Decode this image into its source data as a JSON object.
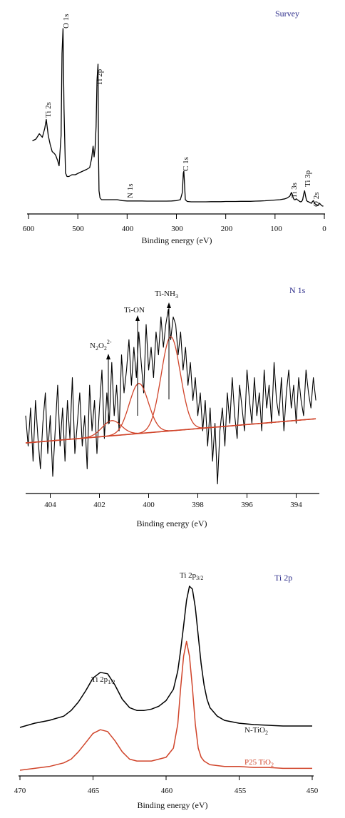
{
  "chart_data": [
    {
      "type": "line",
      "title": "Survey",
      "xlabel": "Binding energy (eV)",
      "ylabel": "",
      "xlim": [
        600,
        0
      ],
      "x_ticks": [
        "600",
        "500",
        "400",
        "300",
        "200",
        "100",
        "0"
      ],
      "series": [
        {
          "color": "#000000",
          "x": [
            592,
            585,
            578,
            572,
            567,
            564,
            560,
            556,
            552,
            548,
            545,
            541,
            538,
            534,
            532,
            530,
            528,
            525,
            522,
            518,
            512,
            505,
            498,
            490,
            482,
            476,
            472,
            469,
            467,
            465,
            463,
            461,
            459,
            458,
            457,
            455,
            452,
            448,
            440,
            430,
            420,
            410,
            400,
            390,
            380,
            370,
            360,
            350,
            340,
            330,
            320,
            310,
            300,
            292,
            288,
            286,
            285,
            284,
            282,
            278,
            270,
            260,
            250,
            240,
            230,
            220,
            210,
            200,
            190,
            180,
            170,
            160,
            150,
            140,
            130,
            120,
            110,
            100,
            90,
            80,
            75,
            70,
            67,
            65,
            63,
            61,
            59,
            57,
            55,
            52,
            50,
            48,
            46,
            44,
            42,
            40,
            38,
            36,
            34,
            32,
            30,
            28,
            26,
            24,
            22,
            20,
            18,
            16,
            14,
            12,
            10,
            8,
            6,
            4,
            2
          ],
          "y": [
            0.37,
            0.38,
            0.41,
            0.39,
            0.44,
            0.49,
            0.4,
            0.35,
            0.31,
            0.3,
            0.29,
            0.26,
            0.23,
            0.4,
            0.86,
            1.0,
            0.55,
            0.19,
            0.17,
            0.17,
            0.18,
            0.18,
            0.19,
            0.2,
            0.21,
            0.22,
            0.27,
            0.34,
            0.28,
            0.33,
            0.45,
            0.71,
            0.8,
            0.3,
            0.09,
            0.05,
            0.04,
            0.04,
            0.04,
            0.04,
            0.04,
            0.035,
            0.033,
            0.033,
            0.033,
            0.033,
            0.032,
            0.032,
            0.032,
            0.032,
            0.032,
            0.033,
            0.035,
            0.04,
            0.08,
            0.19,
            0.2,
            0.15,
            0.04,
            0.03,
            0.028,
            0.028,
            0.028,
            0.028,
            0.029,
            0.029,
            0.029,
            0.03,
            0.03,
            0.03,
            0.031,
            0.031,
            0.031,
            0.032,
            0.033,
            0.034,
            0.036,
            0.038,
            0.04,
            0.045,
            0.05,
            0.06,
            0.08,
            0.07,
            0.05,
            0.04,
            0.04,
            0.045,
            0.04,
            0.035,
            0.03,
            0.028,
            0.03,
            0.04,
            0.07,
            0.09,
            0.06,
            0.035,
            0.03,
            0.028,
            0.025,
            0.022,
            0.02,
            0.03,
            0.035,
            0.02,
            0.015,
            0.012,
            0.01,
            0.008,
            0.02,
            0.015,
            0.008,
            0.005,
            0.004
          ]
        }
      ],
      "annotations": [
        "O 1s",
        "Ti 2s",
        "Ti 2p",
        "N 1s",
        "C 1s",
        "Ti 3s",
        "Ti 3p",
        "O 2s"
      ]
    },
    {
      "type": "line",
      "title": "N 1s",
      "xlabel": "Binding energy (eV)",
      "ylabel": "",
      "xlim": [
        405,
        393
      ],
      "x_ticks": [
        "404",
        "402",
        "400",
        "398",
        "396",
        "394"
      ],
      "series": [
        {
          "color": "#000000",
          "x": [
            405.0,
            404.9,
            404.8,
            404.7,
            404.6,
            404.5,
            404.4,
            404.3,
            404.2,
            404.1,
            404.0,
            403.9,
            403.8,
            403.7,
            403.6,
            403.5,
            403.4,
            403.3,
            403.2,
            403.1,
            403.0,
            402.9,
            402.8,
            402.7,
            402.6,
            402.5,
            402.4,
            402.3,
            402.2,
            402.1,
            402.0,
            401.9,
            401.8,
            401.7,
            401.6,
            401.5,
            401.4,
            401.3,
            401.2,
            401.1,
            401.0,
            400.9,
            400.8,
            400.7,
            400.6,
            400.5,
            400.4,
            400.3,
            400.2,
            400.1,
            400.0,
            399.9,
            399.8,
            399.7,
            399.6,
            399.5,
            399.4,
            399.3,
            399.2,
            399.1,
            399.0,
            398.9,
            398.8,
            398.7,
            398.6,
            398.5,
            398.4,
            398.3,
            398.2,
            398.1,
            398.0,
            397.9,
            397.8,
            397.7,
            397.6,
            397.5,
            397.4,
            397.3,
            397.2,
            397.1,
            397.0,
            396.9,
            396.8,
            396.7,
            396.6,
            396.5,
            396.4,
            396.3,
            396.2,
            396.1,
            396.0,
            395.9,
            395.8,
            395.7,
            395.6,
            395.5,
            395.4,
            395.3,
            395.2,
            395.1,
            395.0,
            394.9,
            394.8,
            394.7,
            394.6,
            394.5,
            394.4,
            394.3,
            394.2,
            394.1,
            394.0,
            393.9,
            393.8,
            393.7,
            393.6,
            393.5,
            393.4,
            393.3,
            393.2
          ],
          "y": [
            0.4,
            0.2,
            0.45,
            0.1,
            0.5,
            0.25,
            0.05,
            0.35,
            0.55,
            0.15,
            0.4,
            0.0,
            0.3,
            0.6,
            0.2,
            0.45,
            0.1,
            0.5,
            0.25,
            0.65,
            0.15,
            0.35,
            0.55,
            0.2,
            0.4,
            0.05,
            0.6,
            0.3,
            0.5,
            0.15,
            0.45,
            0.7,
            0.25,
            0.55,
            0.35,
            0.75,
            0.4,
            0.6,
            0.3,
            0.8,
            0.55,
            0.7,
            0.9,
            0.6,
            0.85,
            0.65,
            0.95,
            0.75,
            0.55,
            1.0,
            0.7,
            0.85,
            0.65,
            0.95,
            0.8,
            1.05,
            0.85,
            1.0,
            1.1,
            0.9,
            1.05,
            1.0,
            0.8,
            0.95,
            0.7,
            0.85,
            0.6,
            0.75,
            0.5,
            0.65,
            0.4,
            0.55,
            0.3,
            0.5,
            0.2,
            0.45,
            0.1,
            0.35,
            -0.05,
            0.3,
            0.45,
            0.2,
            0.55,
            0.35,
            0.65,
            0.4,
            0.25,
            0.6,
            0.45,
            0.3,
            0.7,
            0.5,
            0.35,
            0.65,
            0.4,
            0.55,
            0.3,
            0.7,
            0.45,
            0.6,
            0.35,
            0.75,
            0.5,
            0.4,
            0.65,
            0.3,
            0.55,
            0.7,
            0.45,
            0.6,
            0.35,
            0.65,
            0.5,
            0.4,
            0.7,
            0.55,
            0.45,
            0.65,
            0.5
          ]
        },
        {
          "color": "#d0442a",
          "peak_center": 401.5,
          "peak_height": 0.1,
          "peak_width": 0.55
        },
        {
          "color": "#d0442a",
          "peak_center": 400.4,
          "peak_height": 0.33,
          "peak_width": 0.55
        },
        {
          "color": "#d0442a",
          "peak_center": 399.1,
          "peak_height": 0.62,
          "peak_width": 0.55
        }
      ],
      "annotations": [
        "N",
        "2",
        "O",
        "2",
        "2-",
        "Ti-ON",
        "Ti-NH",
        "3"
      ]
    },
    {
      "type": "line",
      "title": "Ti 2p",
      "xlabel": "Binding energy (eV)",
      "ylabel": "",
      "xlim": [
        470,
        450
      ],
      "x_ticks": [
        "470",
        "465",
        "460",
        "455",
        "450"
      ],
      "series": [
        {
          "name_parts": [
            "N-TiO",
            "2"
          ],
          "color": "#000000",
          "x": [
            470,
            469,
            468,
            467,
            466.5,
            466,
            465.5,
            465,
            464.5,
            464,
            463.5,
            463,
            462.5,
            462,
            461.5,
            461,
            460.5,
            460,
            459.5,
            459.2,
            459,
            458.8,
            458.6,
            458.4,
            458.2,
            458,
            457.8,
            457.6,
            457.4,
            457.2,
            457,
            456.5,
            456,
            455.5,
            455,
            454,
            453,
            452,
            451,
            450
          ],
          "y": [
            0.0,
            0.03,
            0.05,
            0.08,
            0.12,
            0.18,
            0.26,
            0.35,
            0.39,
            0.38,
            0.3,
            0.2,
            0.14,
            0.12,
            0.12,
            0.13,
            0.15,
            0.19,
            0.27,
            0.4,
            0.55,
            0.72,
            0.9,
            1.0,
            0.98,
            0.85,
            0.65,
            0.45,
            0.3,
            0.2,
            0.14,
            0.08,
            0.05,
            0.04,
            0.03,
            0.02,
            0.015,
            0.01,
            0.01,
            0.01
          ]
        },
        {
          "name_parts": [
            "P25 TiO",
            "2"
          ],
          "color": "#d0442a",
          "x": [
            470,
            469,
            468,
            467,
            466.5,
            466,
            465.5,
            465,
            464.5,
            464,
            463.5,
            463,
            462.5,
            462,
            461.5,
            461,
            460.5,
            460,
            459.5,
            459.2,
            459,
            458.8,
            458.6,
            458.4,
            458.2,
            458,
            457.8,
            457.6,
            457.4,
            457.2,
            457,
            456.5,
            456,
            455.5,
            455,
            454,
            453,
            452,
            451,
            450
          ],
          "y": [
            0.0,
            0.01,
            0.02,
            0.04,
            0.06,
            0.1,
            0.15,
            0.2,
            0.22,
            0.21,
            0.16,
            0.1,
            0.06,
            0.05,
            0.05,
            0.05,
            0.06,
            0.07,
            0.12,
            0.25,
            0.45,
            0.62,
            0.7,
            0.62,
            0.45,
            0.25,
            0.12,
            0.07,
            0.05,
            0.04,
            0.03,
            0.025,
            0.02,
            0.02,
            0.02,
            0.015,
            0.015,
            0.01,
            0.01,
            0.01
          ]
        }
      ],
      "annotations": [
        "Ti 2p",
        "1/2",
        "Ti 2p",
        "3/2"
      ]
    }
  ]
}
